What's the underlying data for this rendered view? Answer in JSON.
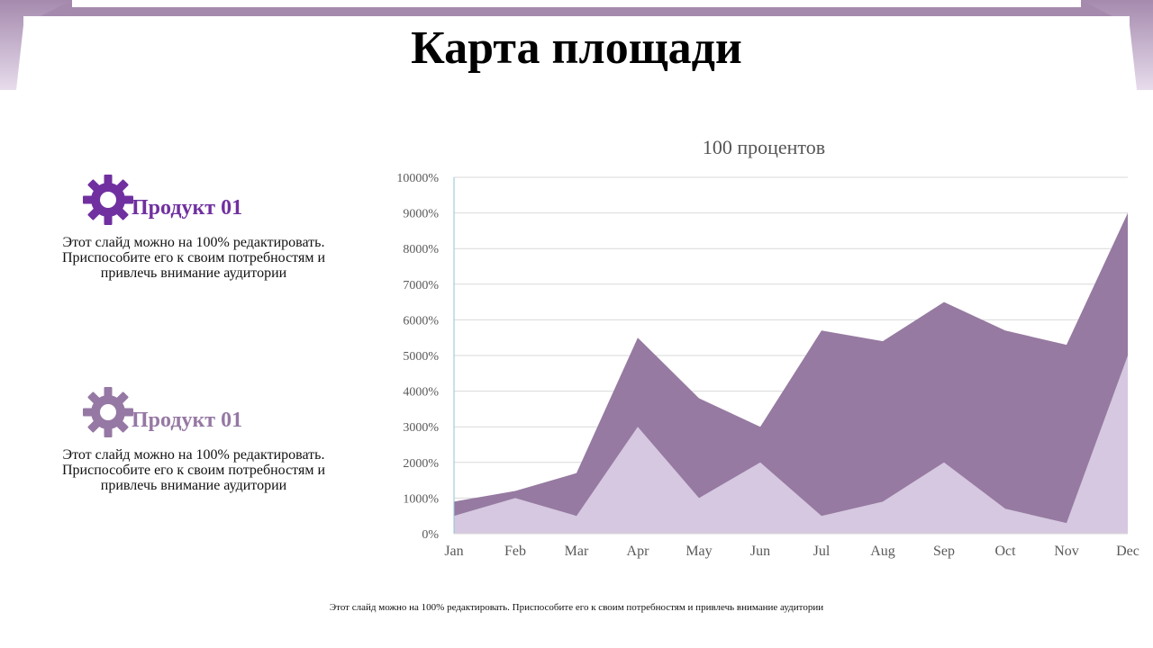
{
  "slide": {
    "title": "Карта площади",
    "footer": "Этот слайд можно на 100% редактировать. Приспособите его к своим потребностям и привлечь внимание аудитории"
  },
  "products": [
    {
      "title": "Продукт 01",
      "description": "Этот слайд можно на 100% редактировать. Приспособите его к своим потребностям и привлечь внимание аудитории",
      "icon": "gear-icon",
      "color": "#7030a0"
    },
    {
      "title": "Продукт 01",
      "description": "Этот слайд можно на 100% редактировать. Приспособите его к своим потребностям и привлечь внимание аудитории",
      "icon": "gear-icon",
      "color": "#9678a4"
    }
  ],
  "colors": {
    "series_dark": "#967aa1",
    "series_light": "#d5c8e0",
    "band": "#a58aae"
  },
  "chart_data": {
    "type": "area",
    "title": "100 процентов",
    "categories": [
      "Jan",
      "Feb",
      "Mar",
      "Apr",
      "May",
      "Jun",
      "Jul",
      "Aug",
      "Sep",
      "Oct",
      "Nov",
      "Dec"
    ],
    "series": [
      {
        "values": [
          900,
          1200,
          1700,
          5500,
          3800,
          3000,
          5700,
          5400,
          6500,
          5700,
          5300,
          9000
        ]
      },
      {
        "values": [
          500,
          1000,
          500,
          3000,
          1000,
          2000,
          500,
          900,
          2000,
          700,
          300,
          5000
        ]
      }
    ],
    "ylim": [
      0,
      10000
    ],
    "ytick_labels": [
      "0%",
      "1000%",
      "2000%",
      "3000%",
      "4000%",
      "5000%",
      "6000%",
      "7000%",
      "8000%",
      "9000%",
      "10000%"
    ],
    "grid": true,
    "legend": "none"
  }
}
